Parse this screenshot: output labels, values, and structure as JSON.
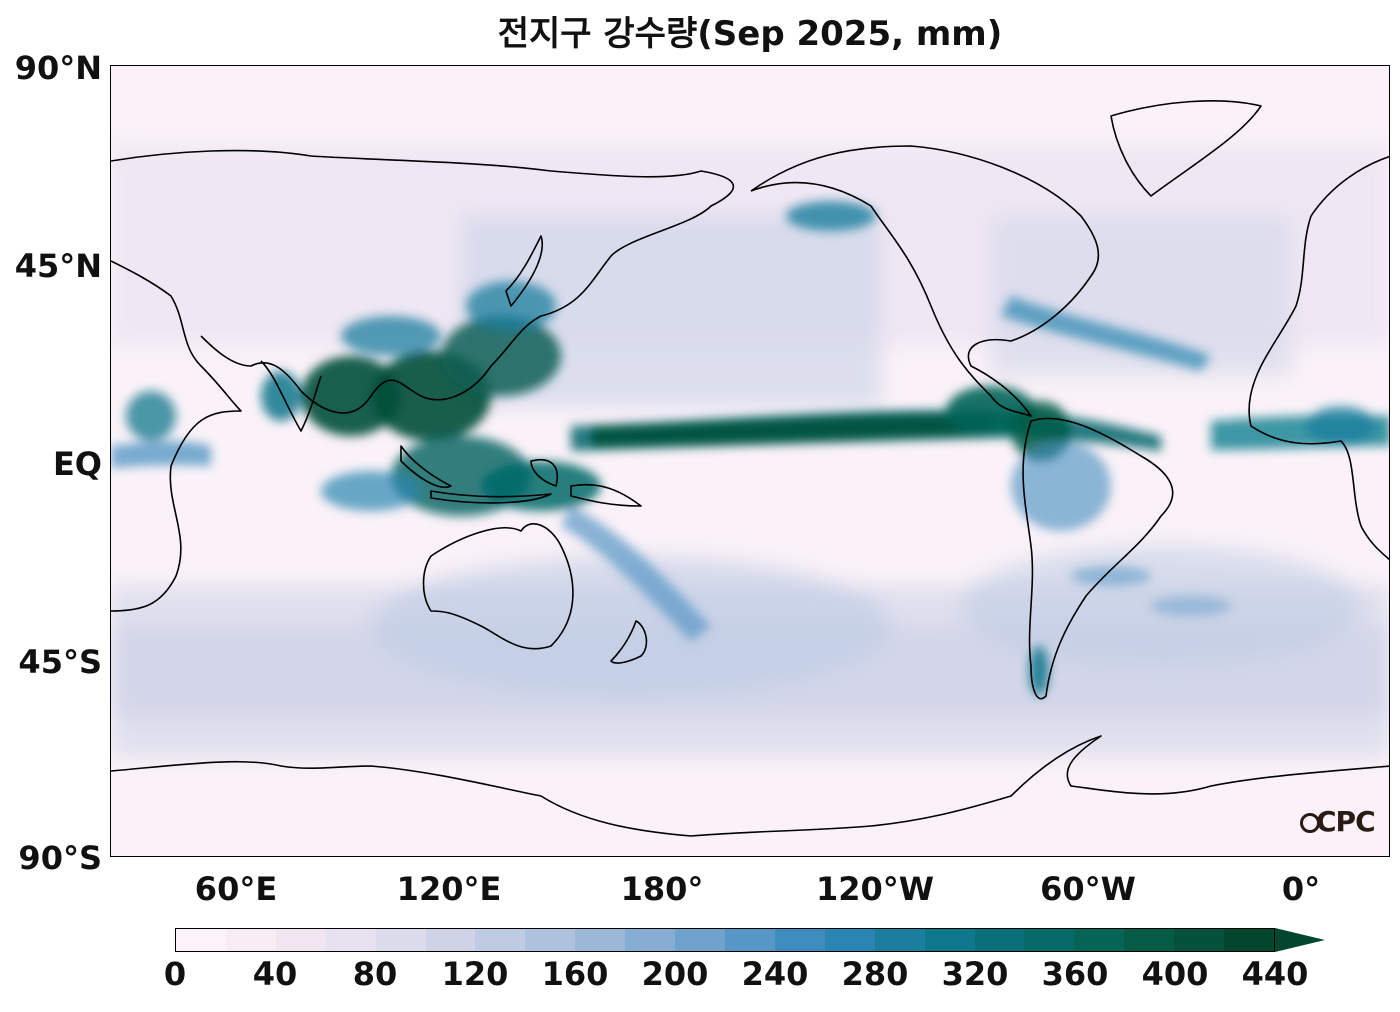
{
  "title": "전지구 강수량(Sep 2025, mm)",
  "lat_labels": [
    "90°N",
    "45°N",
    "EQ",
    "45°S",
    "90°S"
  ],
  "lon_labels": [
    "60°E",
    "120°E",
    "180°",
    "120°W",
    "60°W",
    "0°"
  ],
  "logo_text": "CPC",
  "colorbar": {
    "ticks": [
      "0",
      "40",
      "80",
      "120",
      "160",
      "200",
      "240",
      "280",
      "320",
      "360",
      "400",
      "440"
    ],
    "colors": [
      "#fcf2f8",
      "#f7ecf4",
      "#f0e5f1",
      "#e7e0ee",
      "#dcdbeb",
      "#ced3e7",
      "#bfcbe3",
      "#aec2de",
      "#9bb8d9",
      "#86aed4",
      "#6fa2cd",
      "#5797c6",
      "#3f8cbe",
      "#2a86b0",
      "#1b7e9e",
      "#0f778c",
      "#086f7a",
      "#066a68",
      "#056456",
      "#045c47",
      "#03513a",
      "#02462f"
    ],
    "extend": "max"
  }
}
